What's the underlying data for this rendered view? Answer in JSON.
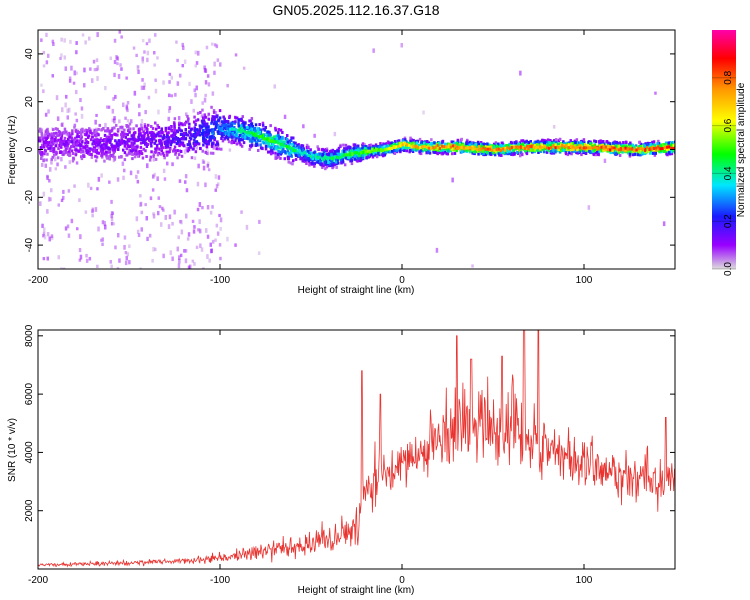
{
  "title": "GN05.2025.112.16.37.G18",
  "chart_data": [
    {
      "type": "heatmap",
      "xlabel": "Height of straight line (km)",
      "ylabel": "Frequency (Hz)",
      "xlim": [
        -200,
        150
      ],
      "ylim": [
        -50,
        50
      ],
      "x_ticks": [
        -200,
        -100,
        0,
        100
      ],
      "y_ticks": [
        -40,
        -20,
        0,
        20,
        40
      ],
      "colorbar": {
        "label": "Normalized spectral amplitude",
        "range": [
          0,
          1
        ],
        "ticks": [
          0.0,
          0.2,
          0.4,
          0.6,
          0.8
        ],
        "colormap": [
          "#dcdcdc",
          "#9900ff",
          "#1a1aff",
          "#00e6ff",
          "#00ff00",
          "#ffff00",
          "#ff9900",
          "#ff0000",
          "#ff00aa"
        ]
      },
      "ridge": {
        "x": [
          -200,
          -150,
          -120,
          -100,
          -90,
          -80,
          -70,
          -60,
          -50,
          -40,
          -30,
          -20,
          -10,
          0,
          10,
          30,
          50,
          70,
          100,
          130,
          150
        ],
        "frequency": [
          2,
          3,
          5,
          9,
          8,
          6,
          3,
          0,
          -3,
          -4,
          -2,
          -1,
          0,
          2,
          1,
          1,
          0,
          1,
          1,
          0,
          1
        ],
        "amplitude": [
          0.12,
          0.15,
          0.2,
          0.35,
          0.45,
          0.5,
          0.5,
          0.45,
          0.4,
          0.45,
          0.5,
          0.55,
          0.6,
          0.7,
          0.75,
          0.8,
          0.8,
          0.8,
          0.85,
          0.85,
          0.85
        ]
      }
    },
    {
      "type": "line",
      "xlabel": "Height of straight line (km)",
      "ylabel": "SNR (10 * v/v)",
      "xlim": [
        -200,
        150
      ],
      "ylim": [
        0,
        8200
      ],
      "x_ticks": [
        -200,
        -100,
        0,
        100
      ],
      "y_ticks": [
        2000,
        4000,
        6000,
        8000
      ],
      "color": "#e8332f",
      "series": [
        {
          "envelope_x": [
            -200,
            -175,
            -150,
            -125,
            -110,
            -100,
            -90,
            -80,
            -70,
            -60,
            -50,
            -40,
            -30,
            -25,
            -20,
            -15,
            -10,
            -5,
            0,
            10,
            20,
            30,
            40,
            50,
            60,
            70,
            80,
            90,
            100,
            110,
            120,
            130,
            140,
            150
          ],
          "mean": [
            150,
            170,
            200,
            260,
            320,
            380,
            470,
            600,
            720,
            820,
            900,
            1000,
            1200,
            1600,
            2800,
            3200,
            3400,
            3500,
            3700,
            4000,
            4400,
            4800,
            5000,
            5000,
            4800,
            4500,
            4200,
            3900,
            3600,
            3400,
            3200,
            3100,
            3000,
            2900
          ],
          "spread": [
            60,
            70,
            90,
            120,
            160,
            200,
            260,
            330,
            400,
            450,
            500,
            550,
            650,
            900,
            1100,
            1000,
            1000,
            950,
            950,
            1100,
            1200,
            1400,
            1500,
            1500,
            1500,
            1500,
            1300,
            1100,
            1000,
            900,
            900,
            900,
            900,
            900
          ],
          "peaks": [
            [
              -22,
              6800
            ],
            [
              -12,
              6000
            ],
            [
              30,
              8000
            ],
            [
              38,
              7200
            ],
            [
              55,
              7300
            ],
            [
              67,
              8200
            ],
            [
              75,
              8200
            ],
            [
              145,
              5200
            ]
          ]
        }
      ]
    }
  ]
}
